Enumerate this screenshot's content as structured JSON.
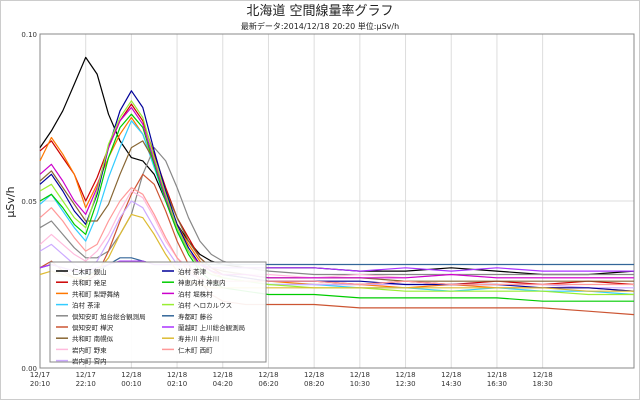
{
  "chart_data": {
    "type": "line",
    "title": "北海道 空間線量率グラフ",
    "subtitle": "最新データ:2014/12/18 20:20 単位:μSv/h",
    "ylabel": "μSv/h",
    "xlabel": "",
    "ylim": [
      0,
      0.1
    ],
    "y_ticks": [
      {
        "value": 0.0,
        "label": "0.00"
      },
      {
        "value": 0.05,
        "label": "0.05"
      },
      {
        "value": 0.1,
        "label": "0.10"
      }
    ],
    "x_range": [
      0,
      26
    ],
    "x_ticks": [
      {
        "x": 0,
        "date": "12/17",
        "time": "20:10"
      },
      {
        "x": 2,
        "date": "12/17",
        "time": "22:10"
      },
      {
        "x": 4,
        "date": "12/18",
        "time": "00:10"
      },
      {
        "x": 6,
        "date": "12/18",
        "time": "02:10"
      },
      {
        "x": 8,
        "date": "12/18",
        "time": "04:20"
      },
      {
        "x": 10,
        "date": "12/18",
        "time": "06:20"
      },
      {
        "x": 12,
        "date": "12/18",
        "time": "08:20"
      },
      {
        "x": 14,
        "date": "12/18",
        "time": "10:30"
      },
      {
        "x": 16,
        "date": "12/18",
        "time": "12:30"
      },
      {
        "x": 18,
        "date": "12/18",
        "time": "14:30"
      },
      {
        "x": 20,
        "date": "12/18",
        "time": "16:30"
      },
      {
        "x": 22,
        "date": "12/18",
        "time": "18:30"
      }
    ],
    "grid": true,
    "legend_position": "bottom-left",
    "series": [
      {
        "name": "仁木町 銀山",
        "color": "#000000",
        "x": [
          0,
          0.5,
          1,
          1.5,
          2,
          2.5,
          3,
          3.5,
          4,
          4.5,
          5,
          5.5,
          6,
          6.5,
          7,
          7.5,
          8,
          9,
          10,
          12,
          14,
          16,
          18,
          20,
          22,
          24,
          26
        ],
        "y": [
          0.066,
          0.071,
          0.077,
          0.085,
          0.093,
          0.088,
          0.076,
          0.068,
          0.063,
          0.062,
          0.058,
          0.05,
          0.043,
          0.038,
          0.034,
          0.032,
          0.031,
          0.03,
          0.03,
          0.03,
          0.029,
          0.029,
          0.03,
          0.029,
          0.028,
          0.028,
          0.029
        ]
      },
      {
        "name": "共和町 発足",
        "color": "#cc0000",
        "x": [
          0,
          0.5,
          1,
          1.5,
          2,
          2.5,
          3,
          3.5,
          4,
          4.5,
          5,
          5.5,
          6,
          6.5,
          7,
          7.5,
          8,
          9,
          10,
          12,
          14,
          16,
          18,
          20,
          22,
          24,
          26
        ],
        "y": [
          0.065,
          0.068,
          0.063,
          0.058,
          0.05,
          0.057,
          0.066,
          0.074,
          0.079,
          0.074,
          0.064,
          0.054,
          0.045,
          0.039,
          0.033,
          0.03,
          0.028,
          0.027,
          0.026,
          0.026,
          0.025,
          0.026,
          0.025,
          0.026,
          0.025,
          0.026,
          0.025
        ]
      },
      {
        "name": "共和町 梨野舞納",
        "color": "#ff7700",
        "x": [
          0,
          0.5,
          1,
          1.5,
          2,
          2.5,
          3,
          3.5,
          4,
          4.5,
          5,
          5.5,
          6,
          6.5,
          7,
          7.5,
          8,
          9,
          10,
          12,
          14,
          16,
          18,
          20,
          22,
          24,
          26
        ],
        "y": [
          0.062,
          0.069,
          0.064,
          0.058,
          0.048,
          0.055,
          0.063,
          0.07,
          0.075,
          0.07,
          0.061,
          0.052,
          0.043,
          0.037,
          0.032,
          0.029,
          0.027,
          0.026,
          0.026,
          0.025,
          0.025,
          0.024,
          0.025,
          0.024,
          0.024,
          0.024,
          0.023
        ]
      },
      {
        "name": "泊村 茶津",
        "color": "#33ccff",
        "x": [
          0,
          0.5,
          1,
          1.5,
          2,
          2.5,
          3,
          3.5,
          4,
          4.5,
          5,
          5.5,
          6,
          6.5,
          7,
          7.5,
          8,
          9,
          10,
          12,
          14,
          16,
          18,
          20,
          22,
          24,
          26
        ],
        "y": [
          0.049,
          0.052,
          0.047,
          0.042,
          0.038,
          0.046,
          0.057,
          0.066,
          0.074,
          0.07,
          0.06,
          0.05,
          0.041,
          0.035,
          0.03,
          0.028,
          0.027,
          0.026,
          0.025,
          0.025,
          0.024,
          0.024,
          0.023,
          0.024,
          0.023,
          0.023,
          0.022
        ]
      },
      {
        "name": "倶知安町 旭台総合観測局",
        "color": "#888888",
        "x": [
          0,
          0.5,
          1,
          1.5,
          2,
          2.5,
          3,
          3.5,
          4,
          4.5,
          5,
          5.5,
          6,
          6.5,
          7,
          7.5,
          8,
          9,
          10,
          12,
          14,
          16,
          18,
          20,
          22,
          24,
          26
        ],
        "y": [
          0.042,
          0.044,
          0.04,
          0.036,
          0.033,
          0.033,
          0.035,
          0.04,
          0.046,
          0.058,
          0.066,
          0.062,
          0.054,
          0.045,
          0.038,
          0.034,
          0.032,
          0.03,
          0.029,
          0.028,
          0.028,
          0.028,
          0.028,
          0.028,
          0.028,
          0.028,
          0.028
        ]
      },
      {
        "name": "倶知安町 樺沢",
        "color": "#cc5533",
        "x": [
          0,
          0.5,
          1,
          1.5,
          2,
          2.5,
          3,
          3.5,
          4,
          4.5,
          5,
          5.5,
          6,
          6.5,
          7,
          7.5,
          8,
          9,
          10,
          12,
          14,
          16,
          18,
          20,
          22,
          24,
          26
        ],
        "y": [
          0.03,
          0.032,
          0.029,
          0.027,
          0.026,
          0.028,
          0.035,
          0.044,
          0.052,
          0.058,
          0.055,
          0.047,
          0.038,
          0.031,
          0.026,
          0.022,
          0.02,
          0.019,
          0.019,
          0.019,
          0.018,
          0.018,
          0.018,
          0.018,
          0.018,
          0.017,
          0.016
        ]
      },
      {
        "name": "共和町 南幌似",
        "color": "#886633",
        "x": [
          0,
          0.5,
          1,
          1.5,
          2,
          2.5,
          3,
          3.5,
          4,
          4.5,
          5,
          5.5,
          6,
          6.5,
          7,
          7.5,
          8,
          9,
          10,
          12,
          14,
          16,
          18,
          20,
          22,
          24,
          26
        ],
        "y": [
          0.056,
          0.059,
          0.054,
          0.049,
          0.044,
          0.044,
          0.049,
          0.058,
          0.066,
          0.068,
          0.062,
          0.053,
          0.045,
          0.038,
          0.033,
          0.03,
          0.029,
          0.028,
          0.027,
          0.027,
          0.027,
          0.026,
          0.026,
          0.026,
          0.026,
          0.026,
          0.026
        ]
      },
      {
        "name": "岩内町 野束",
        "color": "#ffbbdd",
        "x": [
          0,
          0.5,
          1,
          1.5,
          2,
          2.5,
          3,
          3.5,
          4,
          4.5,
          5,
          5.5,
          6,
          6.5,
          7,
          7.5,
          8,
          9,
          10,
          12,
          14,
          16,
          18,
          20,
          22,
          24,
          26
        ],
        "y": [
          0.037,
          0.04,
          0.037,
          0.034,
          0.032,
          0.035,
          0.04,
          0.047,
          0.053,
          0.051,
          0.045,
          0.038,
          0.033,
          0.03,
          0.029,
          0.028,
          0.028,
          0.028,
          0.028,
          0.027,
          0.028,
          0.027,
          0.028,
          0.027,
          0.027,
          0.027,
          0.027
        ]
      },
      {
        "name": "岩内町 宮内",
        "color": "#ccaaff",
        "x": [
          0,
          0.5,
          1,
          1.5,
          2,
          2.5,
          3,
          3.5,
          4,
          4.5,
          5,
          5.5,
          6,
          6.5,
          7,
          7.5,
          8,
          9,
          10,
          12,
          14,
          16,
          18,
          20,
          22,
          24,
          26
        ],
        "y": [
          0.035,
          0.037,
          0.034,
          0.031,
          0.029,
          0.032,
          0.038,
          0.045,
          0.05,
          0.048,
          0.042,
          0.036,
          0.031,
          0.028,
          0.027,
          0.026,
          0.026,
          0.026,
          0.025,
          0.025,
          0.025,
          0.025,
          0.025,
          0.025,
          0.025,
          0.024,
          0.024
        ]
      },
      {
        "name": "泊村 茶津",
        "color": "#000099",
        "x": [
          0,
          0.5,
          1,
          1.5,
          2,
          2.5,
          3,
          3.5,
          4,
          4.5,
          5,
          5.5,
          6,
          6.5,
          7,
          7.5,
          8,
          9,
          10,
          12,
          14,
          16,
          18,
          20,
          22,
          24,
          26
        ],
        "y": [
          0.055,
          0.058,
          0.053,
          0.047,
          0.043,
          0.052,
          0.066,
          0.077,
          0.083,
          0.078,
          0.065,
          0.053,
          0.043,
          0.036,
          0.031,
          0.029,
          0.028,
          0.027,
          0.026,
          0.026,
          0.026,
          0.025,
          0.025,
          0.025,
          0.024,
          0.024,
          0.023
        ]
      },
      {
        "name": "神恵内村 神恵内",
        "color": "#00cc00",
        "x": [
          0,
          0.5,
          1,
          1.5,
          2,
          2.5,
          3,
          3.5,
          4,
          4.5,
          5,
          5.5,
          6,
          6.5,
          7,
          7.5,
          8,
          9,
          10,
          12,
          14,
          16,
          18,
          20,
          22,
          24,
          26
        ],
        "y": [
          0.05,
          0.052,
          0.048,
          0.043,
          0.04,
          0.05,
          0.063,
          0.072,
          0.076,
          0.072,
          0.061,
          0.05,
          0.041,
          0.034,
          0.029,
          0.026,
          0.024,
          0.023,
          0.022,
          0.022,
          0.021,
          0.021,
          0.021,
          0.021,
          0.02,
          0.02,
          0.02
        ]
      },
      {
        "name": "泊村 堀株村",
        "color": "#cc00cc",
        "x": [
          0,
          0.5,
          1,
          1.5,
          2,
          2.5,
          3,
          3.5,
          4,
          4.5,
          5,
          5.5,
          6,
          6.5,
          7,
          7.5,
          8,
          9,
          10,
          12,
          14,
          16,
          18,
          20,
          22,
          24,
          26
        ],
        "y": [
          0.058,
          0.061,
          0.056,
          0.05,
          0.046,
          0.054,
          0.066,
          0.074,
          0.078,
          0.073,
          0.062,
          0.051,
          0.042,
          0.035,
          0.031,
          0.029,
          0.028,
          0.028,
          0.027,
          0.027,
          0.027,
          0.027,
          0.028,
          0.027,
          0.027,
          0.027,
          0.027
        ]
      },
      {
        "name": "泊村 ヘロカルウス",
        "color": "#99ee33",
        "x": [
          0,
          0.5,
          1,
          1.5,
          2,
          2.5,
          3,
          3.5,
          4,
          4.5,
          5,
          5.5,
          6,
          6.5,
          7,
          7.5,
          8,
          9,
          10,
          12,
          14,
          16,
          18,
          20,
          22,
          24,
          26
        ],
        "y": [
          0.053,
          0.055,
          0.05,
          0.045,
          0.042,
          0.053,
          0.067,
          0.075,
          0.08,
          0.075,
          0.063,
          0.052,
          0.042,
          0.035,
          0.03,
          0.028,
          0.027,
          0.026,
          0.025,
          0.024,
          0.024,
          0.023,
          0.023,
          0.023,
          0.023,
          0.022,
          0.022
        ]
      },
      {
        "name": "寿都町 藤谷",
        "color": "#336699",
        "x": [
          0,
          0.5,
          1,
          1.5,
          2,
          2.5,
          3,
          3.5,
          4,
          4.5,
          5,
          5.5,
          6,
          6.5,
          7,
          7.5,
          8,
          9,
          10,
          12,
          14,
          16,
          18,
          20,
          22,
          24,
          26
        ],
        "y": [
          0.03,
          0.031,
          0.03,
          0.029,
          0.028,
          0.029,
          0.031,
          0.033,
          0.033,
          0.032,
          0.031,
          0.031,
          0.031,
          0.031,
          0.031,
          0.031,
          0.031,
          0.031,
          0.031,
          0.031,
          0.031,
          0.031,
          0.031,
          0.031,
          0.031,
          0.031,
          0.031
        ]
      },
      {
        "name": "蘭越町 上川総合観測局",
        "color": "#aa33ff",
        "x": [
          0,
          0.5,
          1,
          1.5,
          2,
          2.5,
          3,
          3.5,
          4,
          4.5,
          5,
          5.5,
          6,
          6.5,
          7,
          7.5,
          8,
          9,
          10,
          12,
          14,
          16,
          18,
          20,
          22,
          24,
          26
        ],
        "y": [
          0.03,
          0.031,
          0.03,
          0.029,
          0.029,
          0.03,
          0.031,
          0.032,
          0.032,
          0.032,
          0.031,
          0.031,
          0.031,
          0.031,
          0.031,
          0.03,
          0.03,
          0.03,
          0.03,
          0.03,
          0.029,
          0.03,
          0.029,
          0.03,
          0.029,
          0.029,
          0.029
        ]
      },
      {
        "name": "寿井川 寿井川",
        "color": "#ddbb33",
        "x": [
          0,
          0.5,
          1,
          1.5,
          2,
          2.5,
          3,
          3.5,
          4,
          4.5,
          5,
          5.5,
          6,
          6.5,
          7,
          7.5,
          8,
          9,
          10,
          12,
          14,
          16,
          18,
          20,
          22,
          24,
          26
        ],
        "y": [
          0.028,
          0.029,
          0.028,
          0.027,
          0.027,
          0.029,
          0.033,
          0.04,
          0.046,
          0.045,
          0.04,
          0.034,
          0.029,
          0.026,
          0.025,
          0.024,
          0.024,
          0.024,
          0.024,
          0.024,
          0.024,
          0.024,
          0.024,
          0.024,
          0.024,
          0.023,
          0.023
        ]
      },
      {
        "name": "仁木町 西町",
        "color": "#ff9999",
        "x": [
          0,
          0.5,
          1,
          1.5,
          2,
          2.5,
          3,
          3.5,
          4,
          4.5,
          5,
          5.5,
          6,
          6.5,
          7,
          7.5,
          8,
          9,
          10,
          12,
          14,
          16,
          18,
          20,
          22,
          24,
          26
        ],
        "y": [
          0.045,
          0.048,
          0.044,
          0.039,
          0.035,
          0.037,
          0.044,
          0.05,
          0.054,
          0.052,
          0.046,
          0.039,
          0.033,
          0.029,
          0.027,
          0.026,
          0.026,
          0.026,
          0.026,
          0.026,
          0.025,
          0.026,
          0.025,
          0.025,
          0.025,
          0.025,
          0.025
        ]
      }
    ]
  }
}
